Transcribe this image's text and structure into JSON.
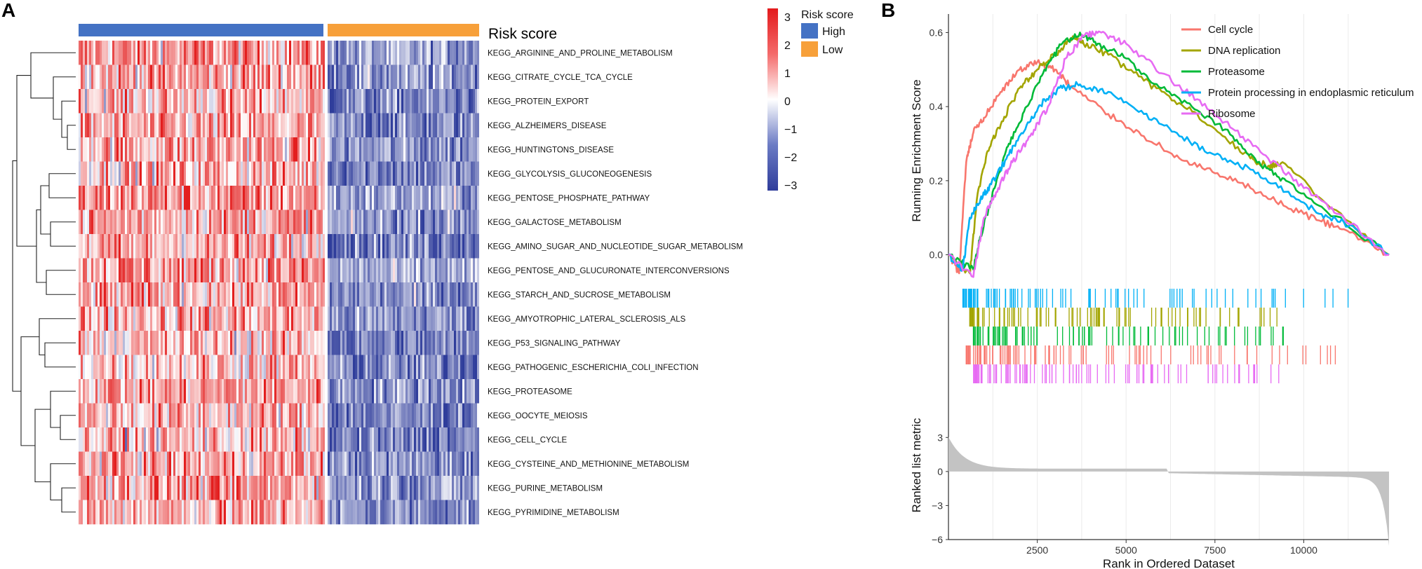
{
  "chart_data": [
    {
      "panel": "A",
      "type": "heatmap",
      "annotation_title": "Risk score",
      "annotation_groups": [
        {
          "name": "High",
          "color": "#4472C4"
        },
        {
          "name": "Low",
          "color": "#F7A03A"
        }
      ],
      "colorbar_ticks": [
        "3",
        "2",
        "1",
        "0",
        "−1",
        "−2",
        "−3"
      ],
      "colorbar_range": [
        -3,
        3
      ],
      "rows": [
        "KEGG_ARGININE_AND_PROLINE_METABOLISM",
        "KEGG_CITRATE_CYCLE_TCA_CYCLE",
        "KEGG_PROTEIN_EXPORT",
        "KEGG_ALZHEIMERS_DISEASE",
        "KEGG_HUNTINGTONS_DISEASE",
        "KEGG_GLYCOLYSIS_GLUCONEOGENESIS",
        "KEGG_PENTOSE_PHOSPHATE_PATHWAY",
        "KEGG_GALACTOSE_METABOLISM",
        "KEGG_AMINO_SUGAR_AND_NUCLEOTIDE_SUGAR_METABOLISM",
        "KEGG_PENTOSE_AND_GLUCURONATE_INTERCONVERSIONS",
        "KEGG_STARCH_AND_SUCROSE_METABOLISM",
        "KEGG_AMYOTROPHIC_LATERAL_SCLEROSIS_ALS",
        "KEGG_P53_SIGNALING_PATHWAY",
        "KEGG_PATHOGENIC_ESCHERICHIA_COLI_INFECTION",
        "KEGG_PROTEASOME",
        "KEGG_OOCYTE_MEIOSIS",
        "KEGG_CELL_CYCLE",
        "KEGG_CYSTEINE_AND_METHIONINE_METABOLISM",
        "KEGG_PURINE_METABOLISM",
        "KEGG_PYRIMIDINE_METABOLISM"
      ],
      "group_fraction": {
        "High": 0.62,
        "Low": 0.38
      },
      "mean_score": {
        "High": 0.8,
        "Low": -1.2
      }
    },
    {
      "panel": "B",
      "type": "line",
      "ylabel": "Running Enrichment Score",
      "xlabel": "Rank in Ordered Dataset",
      "ylabel2": "Ranked list metric",
      "xlim": [
        0,
        12400
      ],
      "ylim": [
        -0.05,
        0.65
      ],
      "yticks": [
        0.0,
        0.2,
        0.4,
        0.6
      ],
      "ytick_labels": [
        "0.0",
        "0.2",
        "0.4",
        "0.6"
      ],
      "xticks": [
        2500,
        5000,
        7500,
        10000
      ],
      "xtick_labels": [
        "2500",
        "5000",
        "7500",
        "10000"
      ],
      "metric_ylim": [
        -6,
        4.5
      ],
      "metric_yticks": [
        3,
        0,
        -3,
        -6
      ],
      "metric_ytick_labels": [
        "3",
        "0",
        "−3",
        "−6"
      ],
      "series": [
        {
          "name": "Cell cycle",
          "color": "#F8766D",
          "points": [
            [
              0,
              0
            ],
            [
              300,
              -0.05
            ],
            [
              500,
              0.25
            ],
            [
              700,
              0.33
            ],
            [
              1000,
              0.37
            ],
            [
              1500,
              0.44
            ],
            [
              2000,
              0.5
            ],
            [
              2500,
              0.52
            ],
            [
              3000,
              0.5
            ],
            [
              3500,
              0.45
            ],
            [
              4500,
              0.38
            ],
            [
              5500,
              0.32
            ],
            [
              6500,
              0.26
            ],
            [
              7500,
              0.22
            ],
            [
              8500,
              0.18
            ],
            [
              9500,
              0.13
            ],
            [
              10500,
              0.09
            ],
            [
              11300,
              0.06
            ],
            [
              12400,
              0
            ]
          ]
        },
        {
          "name": "DNA replication",
          "color": "#A3A500",
          "points": [
            [
              0,
              0
            ],
            [
              600,
              -0.05
            ],
            [
              800,
              0.15
            ],
            [
              1100,
              0.28
            ],
            [
              1500,
              0.36
            ],
            [
              2000,
              0.45
            ],
            [
              2500,
              0.5
            ],
            [
              3000,
              0.54
            ],
            [
              3500,
              0.59
            ],
            [
              3800,
              0.57
            ],
            [
              4500,
              0.54
            ],
            [
              5500,
              0.47
            ],
            [
              6500,
              0.41
            ],
            [
              7500,
              0.34
            ],
            [
              8500,
              0.26
            ],
            [
              9000,
              0.24
            ],
            [
              9400,
              0.25
            ],
            [
              10500,
              0.15
            ],
            [
              12400,
              0
            ]
          ]
        },
        {
          "name": "Proteasome",
          "color": "#00BA38",
          "points": [
            [
              0,
              0
            ],
            [
              700,
              -0.04
            ],
            [
              900,
              0.05
            ],
            [
              1300,
              0.18
            ],
            [
              1700,
              0.3
            ],
            [
              2200,
              0.4
            ],
            [
              2700,
              0.5
            ],
            [
              3200,
              0.57
            ],
            [
              3700,
              0.6
            ],
            [
              4200,
              0.57
            ],
            [
              5000,
              0.53
            ],
            [
              6000,
              0.45
            ],
            [
              7000,
              0.39
            ],
            [
              8000,
              0.32
            ],
            [
              8800,
              0.24
            ],
            [
              9500,
              0.2
            ],
            [
              10500,
              0.13
            ],
            [
              12400,
              0
            ]
          ]
        },
        {
          "name": "Protein processing in endoplasmic reticulum",
          "color": "#00B0F6",
          "points": [
            [
              0,
              0
            ],
            [
              400,
              -0.04
            ],
            [
              600,
              0.1
            ],
            [
              900,
              0.15
            ],
            [
              1200,
              0.19
            ],
            [
              1700,
              0.27
            ],
            [
              2200,
              0.35
            ],
            [
              2700,
              0.42
            ],
            [
              3200,
              0.45
            ],
            [
              3700,
              0.46
            ],
            [
              4500,
              0.44
            ],
            [
              5500,
              0.38
            ],
            [
              6500,
              0.32
            ],
            [
              7500,
              0.27
            ],
            [
              8500,
              0.23
            ],
            [
              9500,
              0.17
            ],
            [
              10500,
              0.11
            ],
            [
              11300,
              0.08
            ],
            [
              12400,
              0
            ]
          ]
        },
        {
          "name": "Ribosome",
          "color": "#E76BF3",
          "points": [
            [
              0,
              0
            ],
            [
              700,
              -0.06
            ],
            [
              1000,
              0.1
            ],
            [
              1400,
              0.18
            ],
            [
              1800,
              0.25
            ],
            [
              2300,
              0.32
            ],
            [
              2800,
              0.4
            ],
            [
              3300,
              0.53
            ],
            [
              3800,
              0.59
            ],
            [
              4300,
              0.6
            ],
            [
              5000,
              0.57
            ],
            [
              6000,
              0.49
            ],
            [
              7000,
              0.42
            ],
            [
              8000,
              0.34
            ],
            [
              9000,
              0.26
            ],
            [
              10000,
              0.18
            ],
            [
              11000,
              0.11
            ],
            [
              12400,
              0
            ]
          ]
        }
      ]
    }
  ],
  "panel_labels": {
    "a": "A",
    "b": "B"
  }
}
